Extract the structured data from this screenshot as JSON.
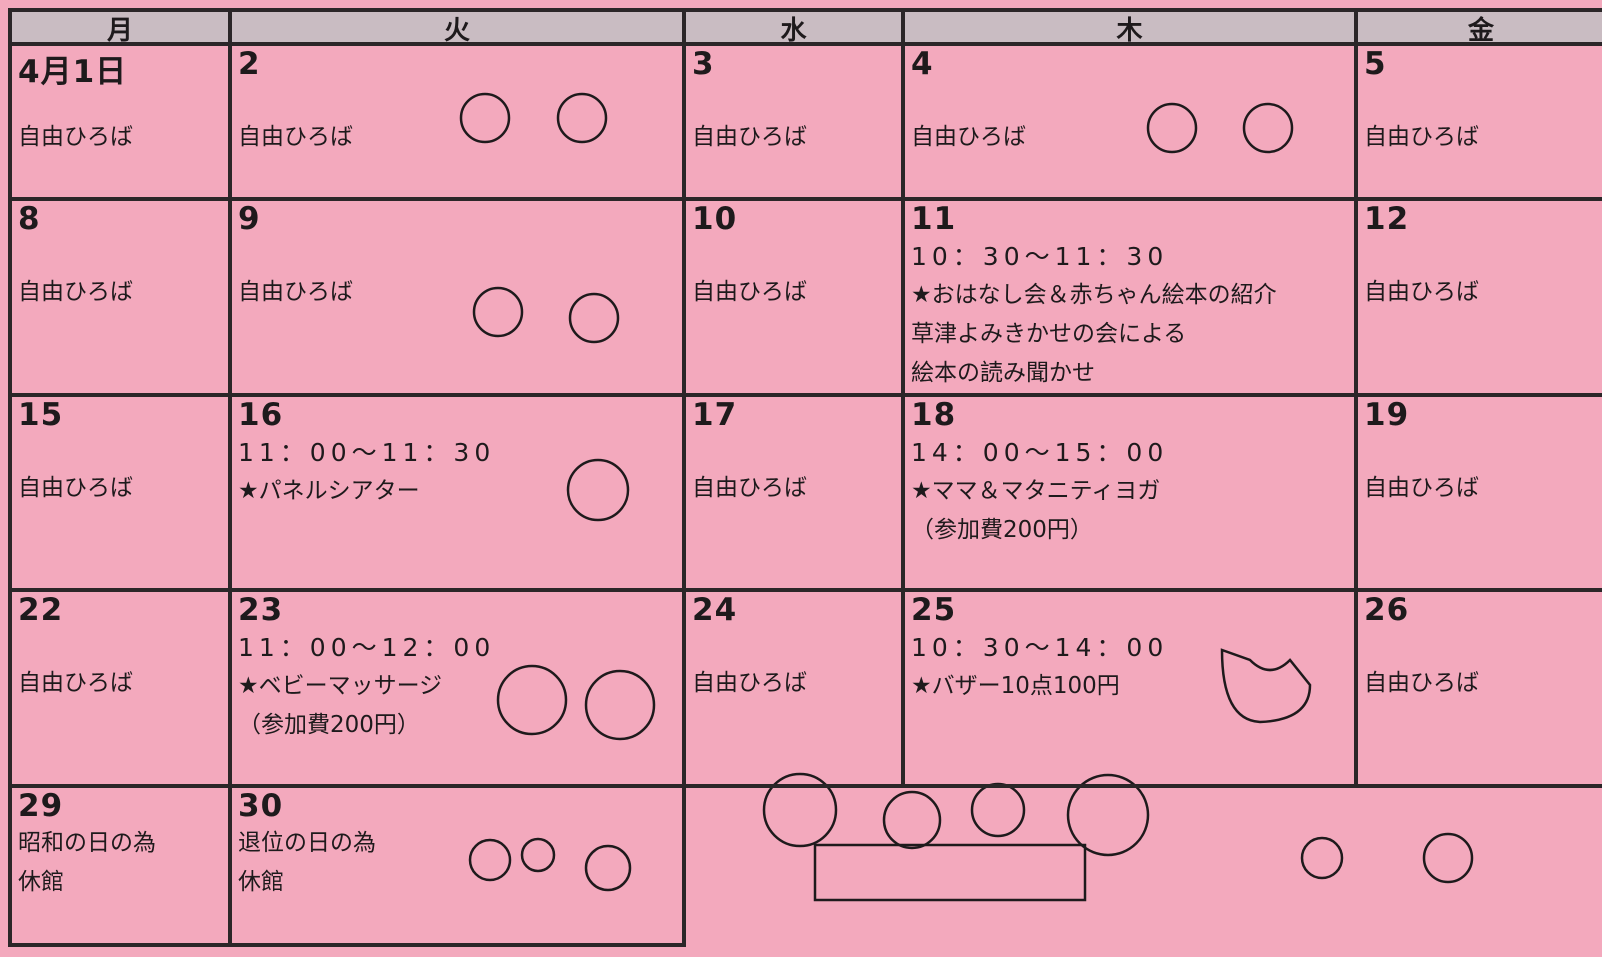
{
  "header": {
    "days": [
      "月",
      "火",
      "水",
      "木",
      "金"
    ]
  },
  "weeks": [
    [
      {
        "date": "4月1日",
        "lines": [
          "自由ひろば"
        ]
      },
      {
        "date": "2",
        "lines": [
          "自由ひろば"
        ]
      },
      {
        "date": "3",
        "lines": [
          "自由ひろば"
        ]
      },
      {
        "date": "4",
        "lines": [
          "自由ひろば"
        ]
      },
      {
        "date": "5",
        "lines": [
          "自由ひろば"
        ]
      }
    ],
    [
      {
        "date": "8",
        "lines": [
          "自由ひろば"
        ]
      },
      {
        "date": "9",
        "lines": [
          "自由ひろば"
        ]
      },
      {
        "date": "10",
        "lines": [
          "自由ひろば"
        ]
      },
      {
        "date": "11",
        "lines": [
          "10：30～11：30",
          "★おはなし会＆赤ちゃん絵本の紹介",
          "草津よみきかせの会による",
          "絵本の読み聞かせ"
        ]
      },
      {
        "date": "12",
        "lines": [
          "自由ひろば"
        ]
      }
    ],
    [
      {
        "date": "15",
        "lines": [
          "自由ひろば"
        ]
      },
      {
        "date": "16",
        "lines": [
          "11：00～11：30",
          "★パネルシアター"
        ]
      },
      {
        "date": "17",
        "lines": [
          "自由ひろば"
        ]
      },
      {
        "date": "18",
        "lines": [
          "14：00～15：00",
          "★ママ＆マタニティヨガ",
          "（参加費200円）"
        ]
      },
      {
        "date": "19",
        "lines": [
          "自由ひろば"
        ]
      }
    ],
    [
      {
        "date": "22",
        "lines": [
          "自由ひろば"
        ]
      },
      {
        "date": "23",
        "lines": [
          "11：00～12：00",
          "★ベビーマッサージ",
          "（参加費200円）"
        ]
      },
      {
        "date": "24",
        "lines": [
          "自由ひろば"
        ]
      },
      {
        "date": "25",
        "lines": [
          "10：30～14：00",
          "★バザー10点100円"
        ]
      },
      {
        "date": "26",
        "lines": [
          "自由ひろば"
        ]
      }
    ],
    [
      {
        "date": "29",
        "lines": [
          "昭和の日の為",
          "休館"
        ]
      },
      {
        "date": "30",
        "lines": [
          "退位の日の為",
          "休館"
        ]
      }
    ]
  ]
}
